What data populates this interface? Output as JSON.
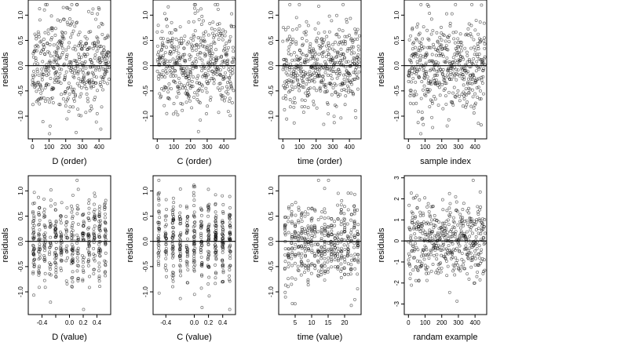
{
  "chart_data": [
    {
      "type": "scatter",
      "xlabel": "D (order)",
      "ylabel": "residuals",
      "xlim": [
        -25,
        470
      ],
      "ylim": [
        -1.45,
        1.3
      ],
      "xticks": [
        0,
        100,
        200,
        300,
        400
      ],
      "xtick_labels": [
        "0",
        "100",
        "200",
        "300",
        "400"
      ],
      "yticks": [
        -1.0,
        -0.5,
        0.0,
        0.5,
        1.0
      ],
      "ytick_labels": [
        "-1.0",
        "-0.5",
        "0.0",
        "0.5",
        "1.0"
      ],
      "hline": 0,
      "points": {
        "n": 460,
        "x_start": 0,
        "x_end": 460,
        "sd": 0.42,
        "seed": 11,
        "spread_profile": "order"
      }
    },
    {
      "type": "scatter",
      "xlabel": "C (order)",
      "ylabel": "residuals",
      "xlim": [
        -25,
        470
      ],
      "ylim": [
        -1.45,
        1.3
      ],
      "xticks": [
        0,
        100,
        200,
        300,
        400
      ],
      "xtick_labels": [
        "0",
        "100",
        "200",
        "300",
        "400"
      ],
      "yticks": [
        -1.0,
        -0.5,
        0.0,
        0.5,
        1.0
      ],
      "ytick_labels": [
        "-1.0",
        "-0.5",
        "0.0",
        "0.5",
        "1.0"
      ],
      "hline": 0,
      "points": {
        "n": 460,
        "x_start": 0,
        "x_end": 460,
        "sd": 0.42,
        "seed": 23,
        "spread_profile": "order"
      }
    },
    {
      "type": "scatter",
      "xlabel": "time (order)",
      "ylabel": "residuals",
      "xlim": [
        -25,
        470
      ],
      "ylim": [
        -1.45,
        1.3
      ],
      "xticks": [
        0,
        100,
        200,
        300,
        400
      ],
      "xtick_labels": [
        "0",
        "100",
        "200",
        "300",
        "400"
      ],
      "yticks": [
        -1.0,
        -0.5,
        0.0,
        0.5,
        1.0
      ],
      "ytick_labels": [
        "-1.0",
        "-0.5",
        "0.0",
        "0.5",
        "1.0"
      ],
      "hline": 0,
      "points": {
        "n": 460,
        "x_start": 0,
        "x_end": 460,
        "sd": 0.42,
        "seed": 37,
        "spread_profile": "flat"
      }
    },
    {
      "type": "scatter",
      "xlabel": "sample index",
      "ylabel": "residuals",
      "xlim": [
        -25,
        470
      ],
      "ylim": [
        -1.45,
        1.3
      ],
      "xticks": [
        0,
        100,
        200,
        300,
        400
      ],
      "xtick_labels": [
        "0",
        "100",
        "200",
        "300",
        "400"
      ],
      "yticks": [
        -1.0,
        -0.5,
        0.0,
        0.5,
        1.0
      ],
      "ytick_labels": [
        "-1.0",
        "-0.5",
        "0.0",
        "0.5",
        "1.0"
      ],
      "hline": 0,
      "points": {
        "n": 460,
        "x_start": 0,
        "x_end": 460,
        "sd": 0.42,
        "seed": 41,
        "spread_profile": "order"
      }
    },
    {
      "type": "scatter",
      "xlabel": "D (value)",
      "ylabel": "residuals",
      "xlim": [
        -0.6,
        0.6
      ],
      "ylim": [
        -1.45,
        1.3
      ],
      "xticks": [
        -0.4,
        -0.2,
        0.0,
        0.2,
        0.4
      ],
      "xtick_labels": [
        "-0.4",
        "",
        "0.0",
        "0.2",
        "0.4"
      ],
      "yticks": [
        -1.0,
        -0.5,
        0.0,
        0.5,
        1.0
      ],
      "ytick_labels": [
        "-1.0",
        "-0.5",
        "0.0",
        "0.5",
        "1.0"
      ],
      "hline": 0,
      "points": {
        "n": 460,
        "x_levels": [
          -0.52,
          -0.44,
          -0.36,
          -0.28,
          -0.2,
          -0.12,
          -0.04,
          0.04,
          0.12,
          0.2,
          0.28,
          0.36,
          0.44,
          0.52
        ],
        "jitter": 0.012,
        "sd": 0.42,
        "seed": 53
      }
    },
    {
      "type": "scatter",
      "xlabel": "C (value)",
      "ylabel": "residuals",
      "xlim": [
        -0.58,
        0.58
      ],
      "ylim": [
        -1.45,
        1.3
      ],
      "xticks": [
        -0.4,
        0.0,
        0.2,
        0.4
      ],
      "xtick_labels": [
        "-0.4",
        "0.0",
        "0.2",
        "0.4"
      ],
      "yticks": [
        -1.0,
        -0.5,
        0.0,
        0.5,
        1.0
      ],
      "ytick_labels": [
        "-1.0",
        "-0.5",
        "0.0",
        "0.5",
        "1.0"
      ],
      "hline": 0,
      "points": {
        "n": 460,
        "x_levels": [
          -0.5,
          -0.4,
          -0.3,
          -0.2,
          -0.1,
          0.0,
          0.1,
          0.2,
          0.3,
          0.4,
          0.5
        ],
        "jitter": 0.01,
        "sd": 0.42,
        "seed": 61
      }
    },
    {
      "type": "scatter",
      "xlabel": "time (value)",
      "ylabel": "residuals",
      "xlim": [
        0,
        25
      ],
      "ylim": [
        -1.45,
        1.3
      ],
      "xticks": [
        5,
        10,
        15,
        20
      ],
      "xtick_labels": [
        "5",
        "10",
        "15",
        "20"
      ],
      "yticks": [
        -1.0,
        -0.5,
        0.0,
        0.5,
        1.0
      ],
      "ytick_labels": [
        "-1.0",
        "-0.5",
        "0.0",
        "0.5",
        "1.0"
      ],
      "hline": 0,
      "points": {
        "n": 460,
        "x_levels": [
          2,
          3,
          4,
          5,
          6,
          7,
          8,
          9,
          10,
          11,
          12,
          13,
          14,
          15,
          16,
          17,
          18,
          19,
          20,
          21,
          22,
          23,
          24
        ],
        "jitter": 0.15,
        "sd": 0.42,
        "seed": 71
      }
    },
    {
      "type": "scatter",
      "xlabel": "randam example",
      "ylabel": "residuals",
      "xlim": [
        -25,
        470
      ],
      "ylim": [
        -3.5,
        3.1
      ],
      "xticks": [
        0,
        100,
        200,
        300,
        400
      ],
      "xtick_labels": [
        "0",
        "100",
        "200",
        "300",
        "400"
      ],
      "yticks": [
        -3,
        -2,
        -1,
        0,
        1,
        2,
        3
      ],
      "ytick_labels": [
        "-3",
        "-2",
        "-1",
        "0",
        "1",
        "2",
        "3"
      ],
      "hline": 0,
      "points": {
        "n": 460,
        "x_start": 0,
        "x_end": 460,
        "sd": 1.0,
        "seed": 83,
        "spread_profile": "flat"
      }
    }
  ]
}
